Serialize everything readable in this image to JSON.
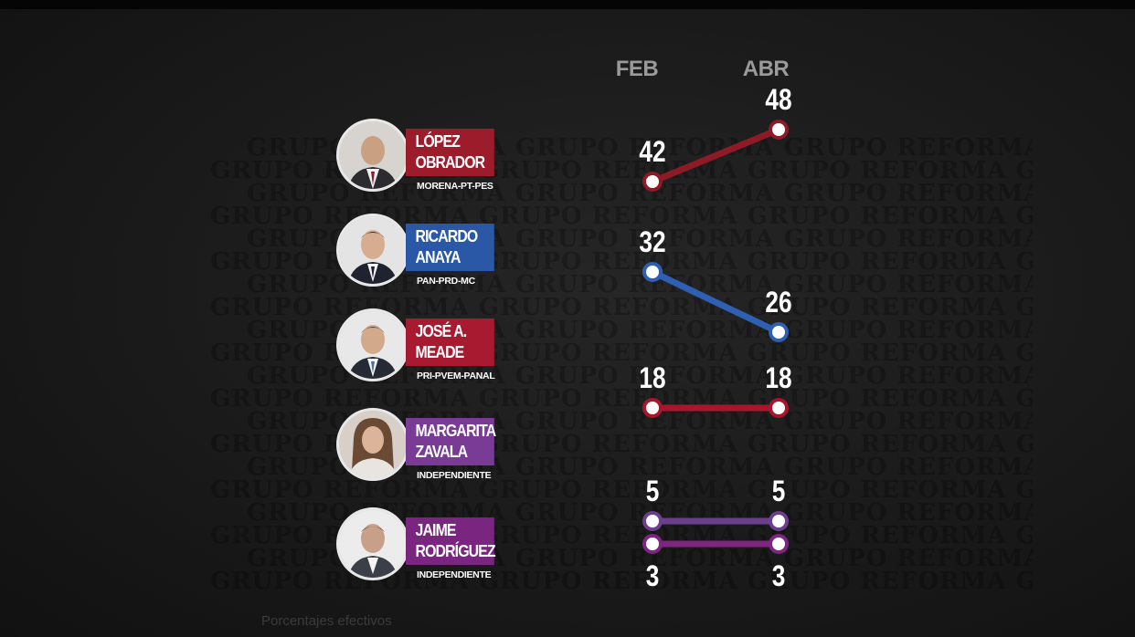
{
  "periods": [
    "FEB",
    "ABR"
  ],
  "candidates": [
    {
      "name_line1": "LÓPEZ",
      "name_line2": "OBRADOR",
      "party": "MORENA-PT-PES",
      "color": "#9c1c2c"
    },
    {
      "name_line1": "RICARDO",
      "name_line2": "ANAYA",
      "party": "PAN-PRD-MC",
      "color": "#2a58a6"
    },
    {
      "name_line1": "JOSÉ A.",
      "name_line2": "MEADE",
      "party": "PRI-PVEM-PANAL",
      "color": "#a81a30"
    },
    {
      "name_line1": "MARGARITA",
      "name_line2": "ZAVALA",
      "party": "INDEPENDIENTE",
      "color": "#7a3b96"
    },
    {
      "name_line1": "JAIME",
      "name_line2": "RODRÍGUEZ",
      "party": "INDEPENDIENTE",
      "color": "#7a2680"
    }
  ],
  "chart_data": {
    "type": "line",
    "x": [
      "FEB",
      "ABR"
    ],
    "series": [
      {
        "name": "LÓPEZ OBRADOR",
        "values": [
          42,
          48
        ],
        "color": "#8e1a26"
      },
      {
        "name": "RICARDO ANAYA",
        "values": [
          32,
          26
        ],
        "color": "#2f5fb3"
      },
      {
        "name": "JOSÉ A. MEADE",
        "values": [
          18,
          18
        ],
        "color": "#a8162c"
      },
      {
        "name": "MARGARITA ZAVALA",
        "values": [
          5,
          5
        ],
        "color": "#6c3f8c"
      },
      {
        "name": "JAIME RODRÍGUEZ",
        "values": [
          3,
          3
        ],
        "color": "#7e2582"
      }
    ],
    "grid": false,
    "legend": "left"
  },
  "watermark": "GRUPO REFORMA",
  "source_note": "Porcentajes efectivos"
}
